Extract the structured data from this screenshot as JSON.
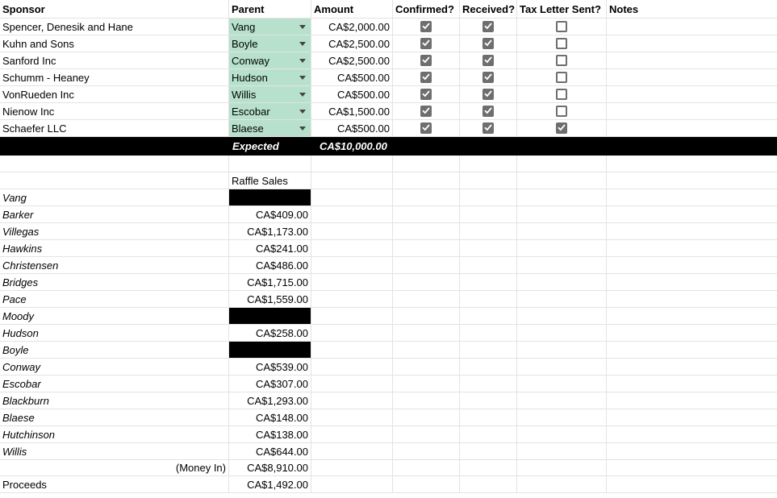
{
  "headers": {
    "sponsor": "Sponsor",
    "parent": "Parent",
    "amount": "Amount",
    "confirmed": "Confirmed?",
    "received": "Received?",
    "tax_letter": "Tax Letter Sent?",
    "notes": "Notes"
  },
  "sponsors": [
    {
      "name": "Spencer, Denesik and Hane",
      "parent": "Vang",
      "amount": "CA$2,000.00",
      "confirmed": true,
      "received": true,
      "tax_letter": false
    },
    {
      "name": "Kuhn and Sons",
      "parent": "Boyle",
      "amount": "CA$2,500.00",
      "confirmed": true,
      "received": true,
      "tax_letter": false
    },
    {
      "name": "Sanford Inc",
      "parent": "Conway",
      "amount": "CA$2,500.00",
      "confirmed": true,
      "received": true,
      "tax_letter": false
    },
    {
      "name": "Schumm - Heaney",
      "parent": "Hudson",
      "amount": "CA$500.00",
      "confirmed": true,
      "received": true,
      "tax_letter": false
    },
    {
      "name": "VonRueden Inc",
      "parent": "Willis",
      "amount": "CA$500.00",
      "confirmed": true,
      "received": true,
      "tax_letter": false
    },
    {
      "name": "Nienow Inc",
      "parent": "Escobar",
      "amount": "CA$1,500.00",
      "confirmed": true,
      "received": true,
      "tax_letter": false
    },
    {
      "name": "Schaefer LLC",
      "parent": "Blaese",
      "amount": "CA$500.00",
      "confirmed": true,
      "received": true,
      "tax_letter": true
    }
  ],
  "expected": {
    "label": "Expected",
    "value": "CA$10,000.00"
  },
  "raffle": {
    "header": "Raffle Sales",
    "rows": [
      {
        "name": "Vang",
        "value": "",
        "blocked": true
      },
      {
        "name": "Barker",
        "value": "CA$409.00",
        "blocked": false
      },
      {
        "name": "Villegas",
        "value": "CA$1,173.00",
        "blocked": false
      },
      {
        "name": "Hawkins",
        "value": "CA$241.00",
        "blocked": false
      },
      {
        "name": "Christensen",
        "value": "CA$486.00",
        "blocked": false
      },
      {
        "name": "Bridges",
        "value": "CA$1,715.00",
        "blocked": false
      },
      {
        "name": "Pace",
        "value": "CA$1,559.00",
        "blocked": false
      },
      {
        "name": "Moody",
        "value": "",
        "blocked": true
      },
      {
        "name": "Hudson",
        "value": "CA$258.00",
        "blocked": false
      },
      {
        "name": "Boyle",
        "value": "",
        "blocked": true
      },
      {
        "name": "Conway",
        "value": "CA$539.00",
        "blocked": false
      },
      {
        "name": "Escobar",
        "value": "CA$307.00",
        "blocked": false
      },
      {
        "name": "Blackburn",
        "value": "CA$1,293.00",
        "blocked": false
      },
      {
        "name": "Blaese",
        "value": "CA$148.00",
        "blocked": false
      },
      {
        "name": "Hutchinson",
        "value": "CA$138.00",
        "blocked": false
      },
      {
        "name": "Willis",
        "value": "CA$644.00",
        "blocked": false
      }
    ],
    "money_in": {
      "label": "(Money In)",
      "value": "CA$8,910.00"
    },
    "proceeds": {
      "label": "Proceeds",
      "value": "CA$1,492.00"
    }
  },
  "colors": {
    "dropdown_fill": "#b7e1cd",
    "checkbox": "#6e6e6e",
    "band": "#000000"
  }
}
